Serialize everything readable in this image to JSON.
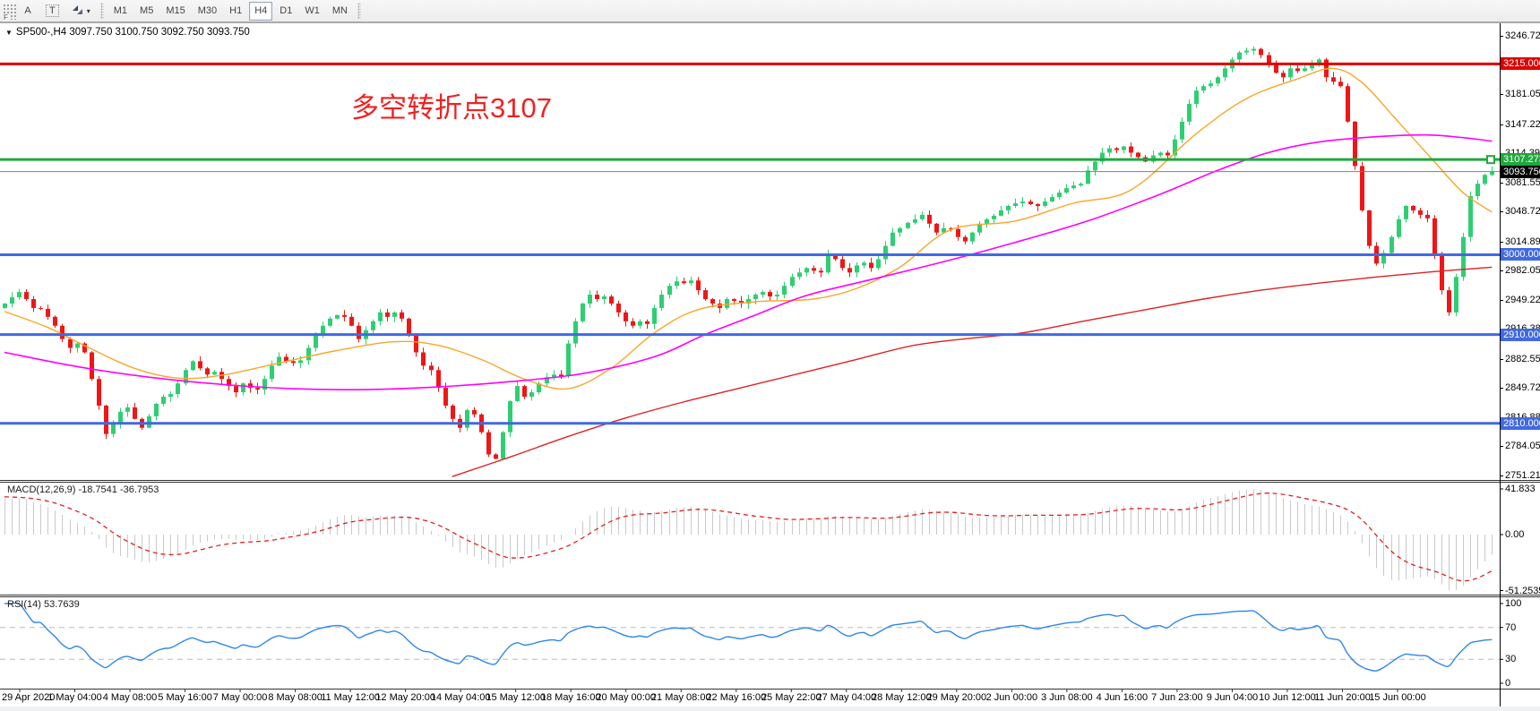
{
  "toolbar": {
    "handle_label": "F",
    "cursor_label": "A",
    "text_label": "T",
    "dropdown_caret": "▾",
    "timeframes": [
      "M1",
      "M5",
      "M15",
      "M30",
      "H1",
      "H4",
      "D1",
      "W1",
      "MN"
    ],
    "active_timeframe": "H4"
  },
  "chart": {
    "symbol_line": {
      "caret": "▼",
      "text": "SP500-,H4  3097.750 3100.750 3092.750 3093.750"
    },
    "annotation": {
      "text": "多空转折点3107",
      "color": "#ee2222"
    },
    "price_axis": {
      "ticks": [
        "3246.725",
        "3181.055",
        "3147.225",
        "3114.390",
        "3081.555",
        "3048.720",
        "3014.890",
        "2982.055",
        "2949.220",
        "2916.385",
        "2882.555",
        "2849.720",
        "2816.885",
        "2784.050",
        "2751.215"
      ]
    },
    "hlines": [
      {
        "price": 3215.0,
        "label": "3215.000",
        "type": "resistance-line",
        "color": "#df0000",
        "width": 3,
        "handle": false
      },
      {
        "price": 3107.273,
        "label": "3107.273",
        "type": "pivot-line",
        "color": "#1fa83c",
        "width": 3,
        "handle": true
      },
      {
        "price": 3093.75,
        "label": "3093.750",
        "type": "current-price-line",
        "color": "#808080",
        "width": 1,
        "label_bg": "#000000",
        "handle": false
      },
      {
        "price": 3000.0,
        "label": "3000.000",
        "type": "support-line",
        "color": "#4169e1",
        "width": 3,
        "handle": false
      },
      {
        "price": 2910.0,
        "label": "2910.000",
        "type": "support-line",
        "color": "#4169e1",
        "width": 3,
        "handle": false
      },
      {
        "price": 2810.0,
        "label": "2810.000",
        "type": "support-line",
        "color": "#4169e1",
        "width": 3,
        "handle": false
      }
    ],
    "time_axis": [
      "29 Apr 2020",
      "1 May 04:00",
      "4 May 08:00",
      "5 May 16:00",
      "7 May 00:00",
      "8 May 08:00",
      "11 May 12:00",
      "12 May 20:00",
      "14 May 04:00",
      "15 May 12:00",
      "18 May 16:00",
      "20 May 00:00",
      "21 May 08:00",
      "22 May 16:00",
      "25 May 22:00",
      "27 May 04:00",
      "28 May 12:00",
      "29 May 20:00",
      "2 Jun 00:00",
      "3 Jun 08:00",
      "4 Jun 16:00",
      "7 Jun 23:00",
      "9 Jun 04:00",
      "10 Jun 12:00",
      "11 Jun 20:00",
      "15 Jun 00:00"
    ]
  },
  "indicators": {
    "macd": {
      "label": "MACD(12,26,9) -18.7541 -36.7953",
      "axis": [
        {
          "label": "41.833",
          "v": 41.833
        },
        {
          "label": "0.00",
          "v": 0
        },
        {
          "label": "-51.2535",
          "v": -51.2535
        }
      ]
    },
    "rsi": {
      "label": "RSI(14) 53.7639",
      "axis": [
        {
          "label": "100",
          "v": 100
        },
        {
          "label": "70",
          "v": 70
        },
        {
          "label": "30",
          "v": 30
        },
        {
          "label": "0",
          "v": 0
        }
      ],
      "levels": [
        70,
        30
      ]
    }
  },
  "chart_data": {
    "type": "candlestick+indicators",
    "symbol": "SP500-",
    "timeframe": "H4",
    "price_axis_top": 3246.725,
    "price_axis_bottom": 2751.215,
    "current_bid": 3093.75,
    "warmup_closes": [
      2750,
      2756,
      2762,
      2768,
      2775,
      2781,
      2788,
      2794,
      2800,
      2806,
      2813,
      2819,
      2826,
      2832,
      2838,
      2845,
      2851,
      2858,
      2864,
      2870,
      2876,
      2883,
      2889,
      2896,
      2902,
      2908,
      2915,
      2919,
      2923,
      2927,
      2930,
      2933,
      2935,
      2936,
      2938,
      2939
    ],
    "closes": [
      2945,
      2952,
      2958,
      2950,
      2940,
      2939,
      2930,
      2920,
      2905,
      2895,
      2900,
      2890,
      2860,
      2830,
      2798,
      2810,
      2823,
      2828,
      2815,
      2805,
      2818,
      2832,
      2840,
      2843,
      2855,
      2870,
      2880,
      2872,
      2865,
      2868,
      2860,
      2852,
      2845,
      2855,
      2850,
      2848,
      2860,
      2875,
      2885,
      2880,
      2878,
      2881,
      2895,
      2910,
      2920,
      2928,
      2932,
      2930,
      2920,
      2905,
      2915,
      2925,
      2935,
      2930,
      2935,
      2928,
      2910,
      2890,
      2875,
      2870,
      2850,
      2830,
      2815,
      2805,
      2825,
      2820,
      2800,
      2775,
      2770,
      2800,
      2835,
      2852,
      2840,
      2845,
      2855,
      2862,
      2865,
      2863,
      2900,
      2925,
      2945,
      2955,
      2950,
      2953,
      2945,
      2935,
      2925,
      2920,
      2925,
      2922,
      2940,
      2955,
      2965,
      2970,
      2968,
      2971,
      2960,
      2950,
      2945,
      2940,
      2950,
      2948,
      2945,
      2950,
      2955,
      2958,
      2953,
      2955,
      2965,
      2975,
      2980,
      2985,
      2982,
      2980,
      3000,
      2995,
      2985,
      2980,
      2988,
      2991,
      2985,
      2995,
      3010,
      3025,
      3030,
      3036,
      3040,
      3045,
      3035,
      3025,
      3030,
      3029,
      3020,
      3015,
      3025,
      3035,
      3040,
      3044,
      3050,
      3055,
      3058,
      3060,
      3057,
      3055,
      3060,
      3065,
      3070,
      3075,
      3078,
      3080,
      3095,
      3105,
      3115,
      3120,
      3118,
      3122,
      3115,
      3110,
      3105,
      3112,
      3115,
      3112,
      3130,
      3150,
      3170,
      3185,
      3190,
      3193,
      3200,
      3210,
      3220,
      3228,
      3230,
      3232,
      3225,
      3215,
      3205,
      3200,
      3210,
      3207,
      3210,
      3215,
      3220,
      3200,
      3195,
      3190,
      3150,
      3100,
      3050,
      3010,
      2990,
      3002,
      3020,
      3040,
      3055,
      3050,
      3045,
      3041,
      3000,
      2960,
      2935,
      2975,
      3020,
      3066,
      3080,
      3090,
      3093.75
    ],
    "ma_lines": [
      {
        "name": "fast-ma",
        "color": "#f8a629",
        "anchors": [
          [
            0,
            2936
          ],
          [
            6,
            2918
          ],
          [
            12,
            2894
          ],
          [
            18,
            2872
          ],
          [
            24,
            2861
          ],
          [
            30,
            2864
          ],
          [
            38,
            2878
          ],
          [
            46,
            2892
          ],
          [
            54,
            2902
          ],
          [
            60,
            2898
          ],
          [
            66,
            2882
          ],
          [
            72,
            2860
          ],
          [
            78,
            2849
          ],
          [
            84,
            2872
          ],
          [
            90,
            2912
          ],
          [
            96,
            2938
          ],
          [
            104,
            2947
          ],
          [
            112,
            2950
          ],
          [
            118,
            2962
          ],
          [
            124,
            2986
          ],
          [
            131,
            3028
          ],
          [
            140,
            3038
          ],
          [
            148,
            3058
          ],
          [
            156,
            3073
          ],
          [
            165,
            3136
          ],
          [
            172,
            3176
          ],
          [
            179,
            3198
          ],
          [
            184,
            3210
          ],
          [
            188,
            3194
          ],
          [
            193,
            3150
          ],
          [
            198,
            3105
          ],
          [
            202,
            3070
          ],
          [
            206,
            3048
          ]
        ]
      },
      {
        "name": "medium-ma",
        "color": "#ff00ff",
        "anchors": [
          [
            0,
            2890
          ],
          [
            10,
            2874
          ],
          [
            20,
            2862
          ],
          [
            30,
            2854
          ],
          [
            40,
            2849
          ],
          [
            50,
            2848
          ],
          [
            60,
            2851
          ],
          [
            70,
            2857
          ],
          [
            80,
            2866
          ],
          [
            90,
            2885
          ],
          [
            97,
            2910
          ],
          [
            104,
            2932
          ],
          [
            111,
            2954
          ],
          [
            120,
            2972
          ],
          [
            130,
            2992
          ],
          [
            140,
            3014
          ],
          [
            150,
            3038
          ],
          [
            160,
            3068
          ],
          [
            168,
            3095
          ],
          [
            175,
            3115
          ],
          [
            182,
            3127
          ],
          [
            190,
            3133
          ],
          [
            197,
            3135
          ],
          [
            202,
            3132
          ],
          [
            206,
            3128
          ]
        ]
      },
      {
        "name": "slow-ma",
        "color": "#dd2222",
        "anchors": [
          [
            62,
            2750
          ],
          [
            70,
            2772
          ],
          [
            78,
            2795
          ],
          [
            86,
            2816
          ],
          [
            94,
            2834
          ],
          [
            102,
            2850
          ],
          [
            110,
            2866
          ],
          [
            118,
            2882
          ],
          [
            126,
            2898
          ],
          [
            134,
            2906
          ],
          [
            141,
            2912
          ],
          [
            150,
            2926
          ],
          [
            158,
            2938
          ],
          [
            166,
            2950
          ],
          [
            174,
            2960
          ],
          [
            182,
            2968
          ],
          [
            190,
            2975
          ],
          [
            198,
            2981
          ],
          [
            206,
            2986
          ]
        ]
      }
    ],
    "macd": {
      "fast": 12,
      "slow": 26,
      "signal_period": 9,
      "current": -18.7541,
      "current_signal": -36.7953,
      "axis_max": 41.833,
      "axis_min": -51.2535
    },
    "rsi": {
      "period": 14,
      "current": 53.7639,
      "levels": [
        70,
        30
      ],
      "axis_max": 100,
      "axis_min": 0
    }
  },
  "colors": {
    "candle_up": "#2fce73",
    "candle_down": "#ee1616",
    "macd_hist": "#c9c9c9",
    "macd_signal": "#e02020",
    "rsi_line": "#2e86e8",
    "axis_line": "#000000",
    "level_dash": "#bbbbbb"
  }
}
